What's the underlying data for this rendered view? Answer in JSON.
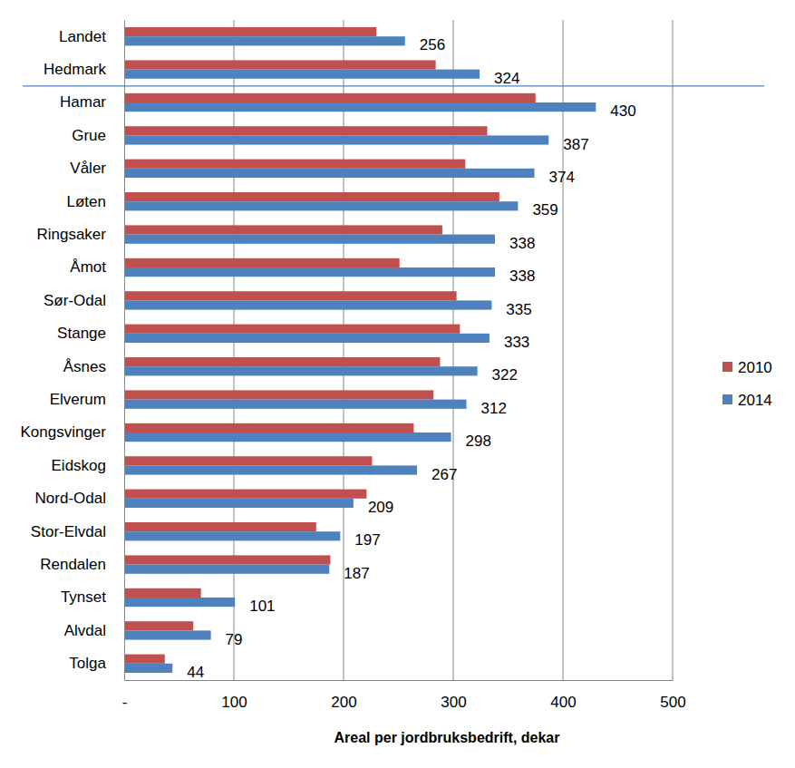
{
  "chart_data": {
    "type": "bar",
    "orientation": "horizontal",
    "x_label": "Areal per jordbruksbedrift, dekar",
    "categories": [
      "Landet",
      "Hedmark",
      "Hamar",
      "Grue",
      "Våler",
      "Løten",
      "Ringsaker",
      "Åmot",
      "Sør-Odal",
      "Stange",
      "Åsnes",
      "Elverum",
      "Kongsvinger",
      "Eidskog",
      "Nord-Odal",
      "Stor-Elvdal",
      "Rendalen",
      "Tynset",
      "Alvdal",
      "Tolga"
    ],
    "series": [
      {
        "name": "2010",
        "color": "#c0504d",
        "values": [
          230,
          284,
          375,
          331,
          311,
          342,
          290,
          251,
          303,
          306,
          288,
          282,
          264,
          226,
          221,
          175,
          188,
          70,
          63,
          37
        ]
      },
      {
        "name": "2014",
        "color": "#4f81bd",
        "data_labels": true,
        "values": [
          256,
          324,
          430,
          387,
          374,
          359,
          338,
          338,
          335,
          333,
          322,
          312,
          298,
          267,
          209,
          197,
          187,
          101,
          79,
          44
        ]
      }
    ],
    "xlim": [
      0,
      500
    ],
    "xticks": [
      {
        "value": 0,
        "label": "-"
      },
      100,
      200,
      300,
      400,
      500
    ],
    "grid": true,
    "legend": "right"
  }
}
